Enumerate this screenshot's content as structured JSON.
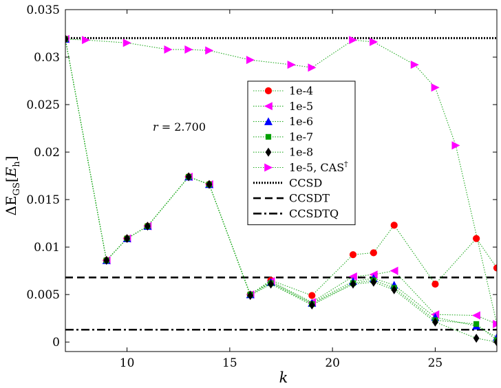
{
  "chart_data": {
    "type": "line",
    "title": "",
    "xlabel": "k",
    "ylabel_main": "ΔE",
    "ylabel_sub": "GS",
    "ylabel_unit_main": "E",
    "ylabel_unit_sub": "h",
    "annotation_var": "r",
    "annotation_value": " = 2.700",
    "xlim": [
      7,
      28
    ],
    "ylim": [
      -0.001,
      0.035
    ],
    "xticks": [
      10,
      15,
      20,
      25
    ],
    "xtick_labels": [
      "10",
      "15",
      "20",
      "25"
    ],
    "yticks": [
      0,
      0.005,
      0.01,
      0.015,
      0.02,
      0.025,
      0.03,
      0.035
    ],
    "ytick_labels": [
      "0",
      "0.005",
      "0.01",
      "0.015",
      "0.02",
      "0.025",
      "0.03",
      "0.035"
    ],
    "legend_position": "upper-center",
    "series": [
      {
        "name": "1e-4",
        "marker": "circle",
        "color": "#ff0000",
        "line_color": "#22aa22",
        "x": [
          7,
          9,
          10,
          11,
          13,
          14,
          16,
          17,
          19,
          21,
          22,
          23,
          25,
          27,
          28
        ],
        "y": [
          0.0319,
          0.0086,
          0.0109,
          0.0122,
          0.0174,
          0.0166,
          0.005,
          0.0065,
          0.0049,
          0.0092,
          0.0094,
          0.0123,
          0.0061,
          0.0109,
          0.0078
        ]
      },
      {
        "name": "1e-5",
        "marker": "triangle-left",
        "color": "#ff00ff",
        "line_color": "#22aa22",
        "x": [
          7,
          9,
          10,
          11,
          13,
          14,
          16,
          17,
          19,
          21,
          22,
          23,
          25,
          27,
          28
        ],
        "y": [
          0.0319,
          0.0086,
          0.0109,
          0.0122,
          0.0174,
          0.0166,
          0.005,
          0.0064,
          0.0042,
          0.0069,
          0.0071,
          0.0075,
          0.0029,
          0.0028,
          0.0019
        ]
      },
      {
        "name": "1e-6",
        "marker": "triangle-up",
        "color": "#0000ff",
        "line_color": "#22aa22",
        "x": [
          7,
          9,
          10,
          11,
          13,
          14,
          16,
          17,
          19,
          21,
          22,
          23,
          25,
          27,
          28
        ],
        "y": [
          0.0319,
          0.0086,
          0.0109,
          0.0122,
          0.0174,
          0.0166,
          0.005,
          0.0063,
          0.0041,
          0.0064,
          0.0067,
          0.006,
          0.0026,
          0.0017,
          0.0005
        ]
      },
      {
        "name": "1e-7",
        "marker": "square",
        "color": "#00a000",
        "line_color": "#22aa22",
        "x": [
          7,
          9,
          10,
          11,
          13,
          14,
          16,
          17,
          19,
          21,
          22,
          23,
          25,
          27,
          28
        ],
        "y": [
          0.0319,
          0.0086,
          0.0109,
          0.0122,
          0.0174,
          0.0166,
          0.005,
          0.0062,
          0.004,
          0.0062,
          0.0065,
          0.0057,
          0.0023,
          0.0019,
          0.0002
        ]
      },
      {
        "name": "1e-8",
        "marker": "diamond",
        "color": "#000000",
        "line_color": "#22aa22",
        "x": [
          7,
          9,
          10,
          11,
          13,
          14,
          16,
          17,
          19,
          21,
          22,
          23,
          25,
          27,
          28
        ],
        "y": [
          0.0319,
          0.0086,
          0.0109,
          0.0122,
          0.0174,
          0.0166,
          0.0049,
          0.0061,
          0.0039,
          0.0061,
          0.0063,
          0.0055,
          0.0021,
          0.0004,
          0.0
        ]
      },
      {
        "name": "1e-5, CAS",
        "name_sup": "†",
        "marker": "triangle-right",
        "color": "#ff00ff",
        "line_color": "#22aa22",
        "x": [
          7,
          8,
          10,
          12,
          13,
          14,
          16,
          18,
          19,
          21,
          22,
          24,
          25,
          26,
          28
        ],
        "y": [
          0.0319,
          0.0318,
          0.0315,
          0.0308,
          0.0308,
          0.0307,
          0.0297,
          0.0292,
          0.0289,
          0.0318,
          0.0316,
          0.0292,
          0.0268,
          0.0207,
          0.0019
        ]
      }
    ],
    "reference_lines": [
      {
        "name": "CCSD",
        "y": 0.032,
        "dash": "dotted"
      },
      {
        "name": "CCSDT",
        "y": 0.0068,
        "dash": "dashed"
      },
      {
        "name": "CCSDTQ",
        "y": 0.0013,
        "dash": "dashdot"
      }
    ]
  }
}
